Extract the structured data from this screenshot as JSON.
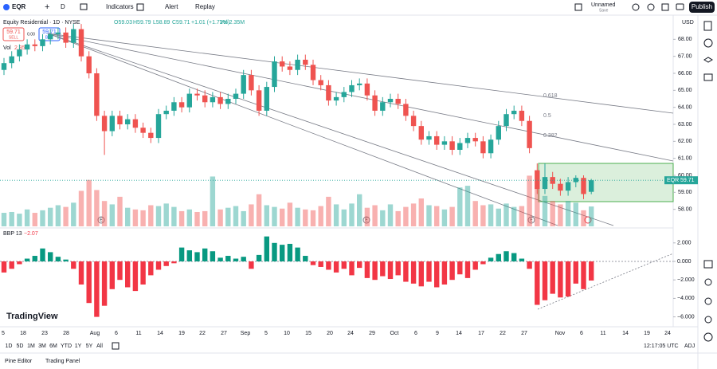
{
  "toolbar": {
    "symbol": "EQR",
    "interval": "D",
    "indicators": "Indicators",
    "alert": "Alert",
    "replay": "Replay",
    "layout_name": "Unnamed",
    "save": "Save",
    "publish": "Publish"
  },
  "legend": {
    "title": "Equity Residential · 1D · NYSE",
    "open": "O59.03",
    "high": "H59.79",
    "low": "L58.89",
    "close": "C59.71",
    "change": "+1.01 (+1.72%)",
    "volume": "Vol 2.35M",
    "sell_price": "59.71",
    "sell": "SELL",
    "spread": "0.00",
    "buy_price": "59.71",
    "buy": "BUY",
    "vol_name": "Vol",
    "vol_value": "2.35M"
  },
  "chart_data": {
    "type": "candlestick",
    "up_color": "#26a69a",
    "down_color": "#ef5350",
    "ohlc": [
      [
        66.2,
        66.9,
        65.9,
        66.6
      ],
      [
        66.6,
        67.3,
        66.3,
        67.0
      ],
      [
        67.0,
        67.7,
        66.7,
        67.4
      ],
      [
        67.4,
        68.0,
        67.1,
        67.7
      ],
      [
        67.7,
        68.0,
        67.3,
        67.6
      ],
      [
        67.6,
        68.3,
        67.3,
        68.0
      ],
      [
        68.0,
        68.6,
        67.7,
        68.3
      ],
      [
        68.3,
        68.7,
        68.0,
        68.4
      ],
      [
        68.4,
        68.7,
        67.5,
        67.8
      ],
      [
        67.8,
        68.9,
        67.5,
        68.6
      ],
      [
        68.6,
        68.9,
        66.7,
        67.0
      ],
      [
        67.0,
        67.3,
        65.7,
        66.0
      ],
      [
        66.0,
        66.3,
        63.2,
        63.5
      ],
      [
        63.5,
        63.8,
        61.2,
        62.6
      ],
      [
        62.6,
        63.8,
        62.3,
        63.5
      ],
      [
        63.5,
        63.8,
        62.7,
        63.0
      ],
      [
        63.0,
        63.6,
        62.7,
        63.3
      ],
      [
        63.3,
        63.6,
        62.5,
        62.8
      ],
      [
        62.8,
        63.1,
        62.2,
        62.5
      ],
      [
        62.5,
        62.8,
        61.9,
        62.2
      ],
      [
        62.2,
        63.9,
        61.9,
        63.6
      ],
      [
        63.6,
        64.1,
        63.3,
        63.8
      ],
      [
        63.8,
        64.6,
        63.5,
        64.3
      ],
      [
        64.3,
        64.6,
        63.7,
        64.0
      ],
      [
        64.0,
        65.1,
        63.7,
        64.8
      ],
      [
        64.8,
        65.1,
        64.4,
        64.7
      ],
      [
        64.7,
        65.0,
        64.0,
        64.3
      ],
      [
        64.3,
        64.9,
        64.0,
        64.6
      ],
      [
        64.6,
        64.9,
        63.9,
        64.2
      ],
      [
        64.2,
        64.8,
        63.9,
        64.5
      ],
      [
        64.5,
        65.1,
        64.2,
        64.8
      ],
      [
        64.8,
        66.2,
        64.5,
        65.9
      ],
      [
        65.9,
        66.2,
        64.7,
        65.0
      ],
      [
        65.0,
        65.3,
        63.5,
        63.8
      ],
      [
        63.8,
        65.5,
        63.5,
        65.2
      ],
      [
        65.2,
        67.0,
        64.9,
        66.7
      ],
      [
        66.7,
        67.0,
        66.1,
        66.4
      ],
      [
        66.4,
        66.7,
        65.9,
        66.2
      ],
      [
        66.2,
        67.1,
        65.9,
        66.8
      ],
      [
        66.8,
        67.1,
        66.2,
        66.5
      ],
      [
        66.5,
        66.8,
        65.3,
        65.6
      ],
      [
        65.6,
        65.9,
        65.0,
        65.3
      ],
      [
        65.3,
        65.6,
        64.1,
        64.4
      ],
      [
        64.4,
        64.9,
        64.1,
        64.6
      ],
      [
        64.6,
        65.2,
        64.3,
        64.9
      ],
      [
        64.9,
        65.6,
        64.6,
        65.3
      ],
      [
        65.3,
        65.7,
        65.0,
        65.4
      ],
      [
        65.4,
        65.7,
        64.4,
        64.7
      ],
      [
        64.7,
        65.0,
        63.5,
        63.8
      ],
      [
        63.8,
        64.6,
        63.5,
        64.3
      ],
      [
        64.3,
        64.8,
        64.0,
        64.5
      ],
      [
        64.5,
        64.8,
        63.9,
        64.2
      ],
      [
        64.2,
        64.5,
        63.2,
        63.5
      ],
      [
        63.5,
        63.8,
        62.6,
        62.9
      ],
      [
        62.9,
        63.2,
        61.8,
        62.1
      ],
      [
        62.1,
        62.6,
        61.8,
        62.3
      ],
      [
        62.3,
        62.6,
        61.5,
        61.8
      ],
      [
        61.8,
        62.3,
        61.5,
        62.0
      ],
      [
        62.0,
        62.3,
        61.2,
        61.5
      ],
      [
        61.5,
        62.2,
        61.2,
        61.9
      ],
      [
        61.9,
        62.5,
        61.6,
        62.2
      ],
      [
        62.2,
        62.5,
        61.7,
        62.0
      ],
      [
        62.0,
        62.3,
        61.0,
        61.3
      ],
      [
        61.3,
        62.4,
        61.0,
        62.1
      ],
      [
        62.1,
        63.2,
        61.8,
        62.9
      ],
      [
        62.9,
        63.9,
        62.6,
        63.6
      ],
      [
        63.6,
        64.1,
        63.3,
        63.8
      ],
      [
        63.8,
        64.1,
        62.9,
        63.2
      ],
      [
        63.2,
        63.5,
        61.3,
        61.6
      ],
      [
        60.3,
        60.7,
        58.9,
        59.2
      ],
      [
        59.2,
        60.7,
        58.9,
        59.9
      ],
      [
        59.9,
        60.2,
        59.2,
        59.5
      ],
      [
        59.5,
        59.8,
        58.8,
        59.1
      ],
      [
        59.1,
        59.9,
        58.8,
        59.6
      ],
      [
        59.6,
        60.0,
        59.3,
        59.85
      ],
      [
        59.85,
        60.0,
        58.6,
        58.9
      ],
      [
        59.03,
        59.79,
        58.89,
        59.71
      ]
    ],
    "ylim": [
      57,
      69
    ],
    "yticks": [
      {
        "value": 68,
        "label": "68.00"
      },
      {
        "value": 67,
        "label": "67.00"
      },
      {
        "value": 66,
        "label": "66.00"
      },
      {
        "value": 65,
        "label": "65.00"
      },
      {
        "value": 64,
        "label": "64.00"
      },
      {
        "value": 63,
        "label": "63.00"
      },
      {
        "value": 62,
        "label": "62.00"
      },
      {
        "value": 61,
        "label": "61.00"
      },
      {
        "value": 60,
        "label": "60.00"
      },
      {
        "value": 59,
        "label": "59.00"
      },
      {
        "value": 58,
        "label": "58.00"
      }
    ],
    "y_label": "USD",
    "last_price": {
      "symbol": "EQR",
      "label": "59.71"
    },
    "x_labels": [
      "5",
      "18",
      "23",
      "28",
      "Aug",
      "6",
      "11",
      "14",
      "19",
      "22",
      "27",
      "Sep",
      "5",
      "10",
      "15",
      "20",
      "24",
      "29",
      "Oct",
      "6",
      "9",
      "14",
      "17",
      "22",
      "27",
      "Nov",
      "6",
      "11",
      "14",
      "19",
      "24"
    ],
    "annotations": [
      "0.618",
      "0.5",
      "0.382"
    ],
    "markers": [
      "E",
      "E",
      "E"
    ],
    "volume": {
      "name": "Vol",
      "values": [
        1.6,
        1.7,
        1.5,
        2.0,
        1.6,
        1.9,
        2.2,
        2.5,
        2.3,
        2.8,
        4.2,
        5.5,
        4.3,
        3.0,
        2.6,
        3.5,
        2.2,
        2.0,
        1.9,
        2.5,
        2.4,
        2.7,
        2.3,
        1.8,
        2.0,
        1.7,
        1.8,
        5.9,
        2.0,
        2.2,
        2.4,
        1.8,
        2.6,
        3.8,
        2.5,
        2.3,
        2.1,
        2.8,
        2.2,
        2.0,
        1.9,
        2.4,
        3.5,
        2.6,
        2.0,
        2.7,
        3.8,
        2.2,
        2.5,
        1.9,
        2.6,
        1.8,
        2.3,
        2.7,
        3.3,
        2.5,
        2.4,
        2.0,
        2.3,
        4.6,
        4.8,
        3.0,
        2.5,
        2.6,
        2.1,
        2.7,
        2.3,
        2.4,
        6.0,
        4.8,
        3.6,
        3.0,
        2.6,
        3.0,
        2.8,
        1.9,
        2.35
      ]
    },
    "bbp": {
      "name": "BBP 13",
      "last_label": "−2.07",
      "up_color": "#089981",
      "down_color": "#f23645",
      "values": [
        -1.2,
        -0.8,
        -0.3,
        0.3,
        0.6,
        1.4,
        1.0,
        0.5,
        0.2,
        -0.8,
        -2.5,
        -4.5,
        -6.0,
        -4.8,
        -3.0,
        -2.0,
        -2.8,
        -3.2,
        -2.5,
        -1.5,
        -0.9,
        -0.5,
        -0.2,
        1.5,
        1.2,
        1.0,
        1.4,
        1.1,
        0.4,
        0.6,
        0.3,
        0.5,
        -0.8,
        0.7,
        2.7,
        2.0,
        1.8,
        1.9,
        1.5,
        0.6,
        -0.4,
        -0.6,
        -0.9,
        -1.2,
        -0.8,
        -1.5,
        -0.7,
        -1.8,
        -2.0,
        -1.6,
        -1.9,
        -1.5,
        -2.2,
        -2.4,
        -2.7,
        -2.2,
        -2.8,
        -2.5,
        -2.0,
        -1.4,
        -1.8,
        -0.9,
        -0.3,
        0.4,
        0.8,
        1.1,
        0.9,
        0.3,
        -0.8,
        -4.7,
        -4.2,
        -3.5,
        -3.9,
        -3.8,
        -2.4,
        -3.0,
        -2.07
      ],
      "ylim": [
        -7,
        3.5
      ],
      "yticks": [
        {
          "value": 2,
          "label": "2.000"
        },
        {
          "value": 0,
          "label": "0.000"
        },
        {
          "value": -2,
          "label": "−2.000"
        },
        {
          "value": -4,
          "label": "−4.000"
        },
        {
          "value": -6,
          "label": "−6.000"
        }
      ]
    }
  },
  "brand": "TradingView",
  "ranges": [
    "1D",
    "5D",
    "1M",
    "3M",
    "6M",
    "YTD",
    "1Y",
    "5Y",
    "All"
  ],
  "clock": "12:17:05 UTC",
  "adj": "ADJ",
  "footer": {
    "pine_editor": "Pine Editor",
    "trading_panel": "Trading Panel"
  }
}
